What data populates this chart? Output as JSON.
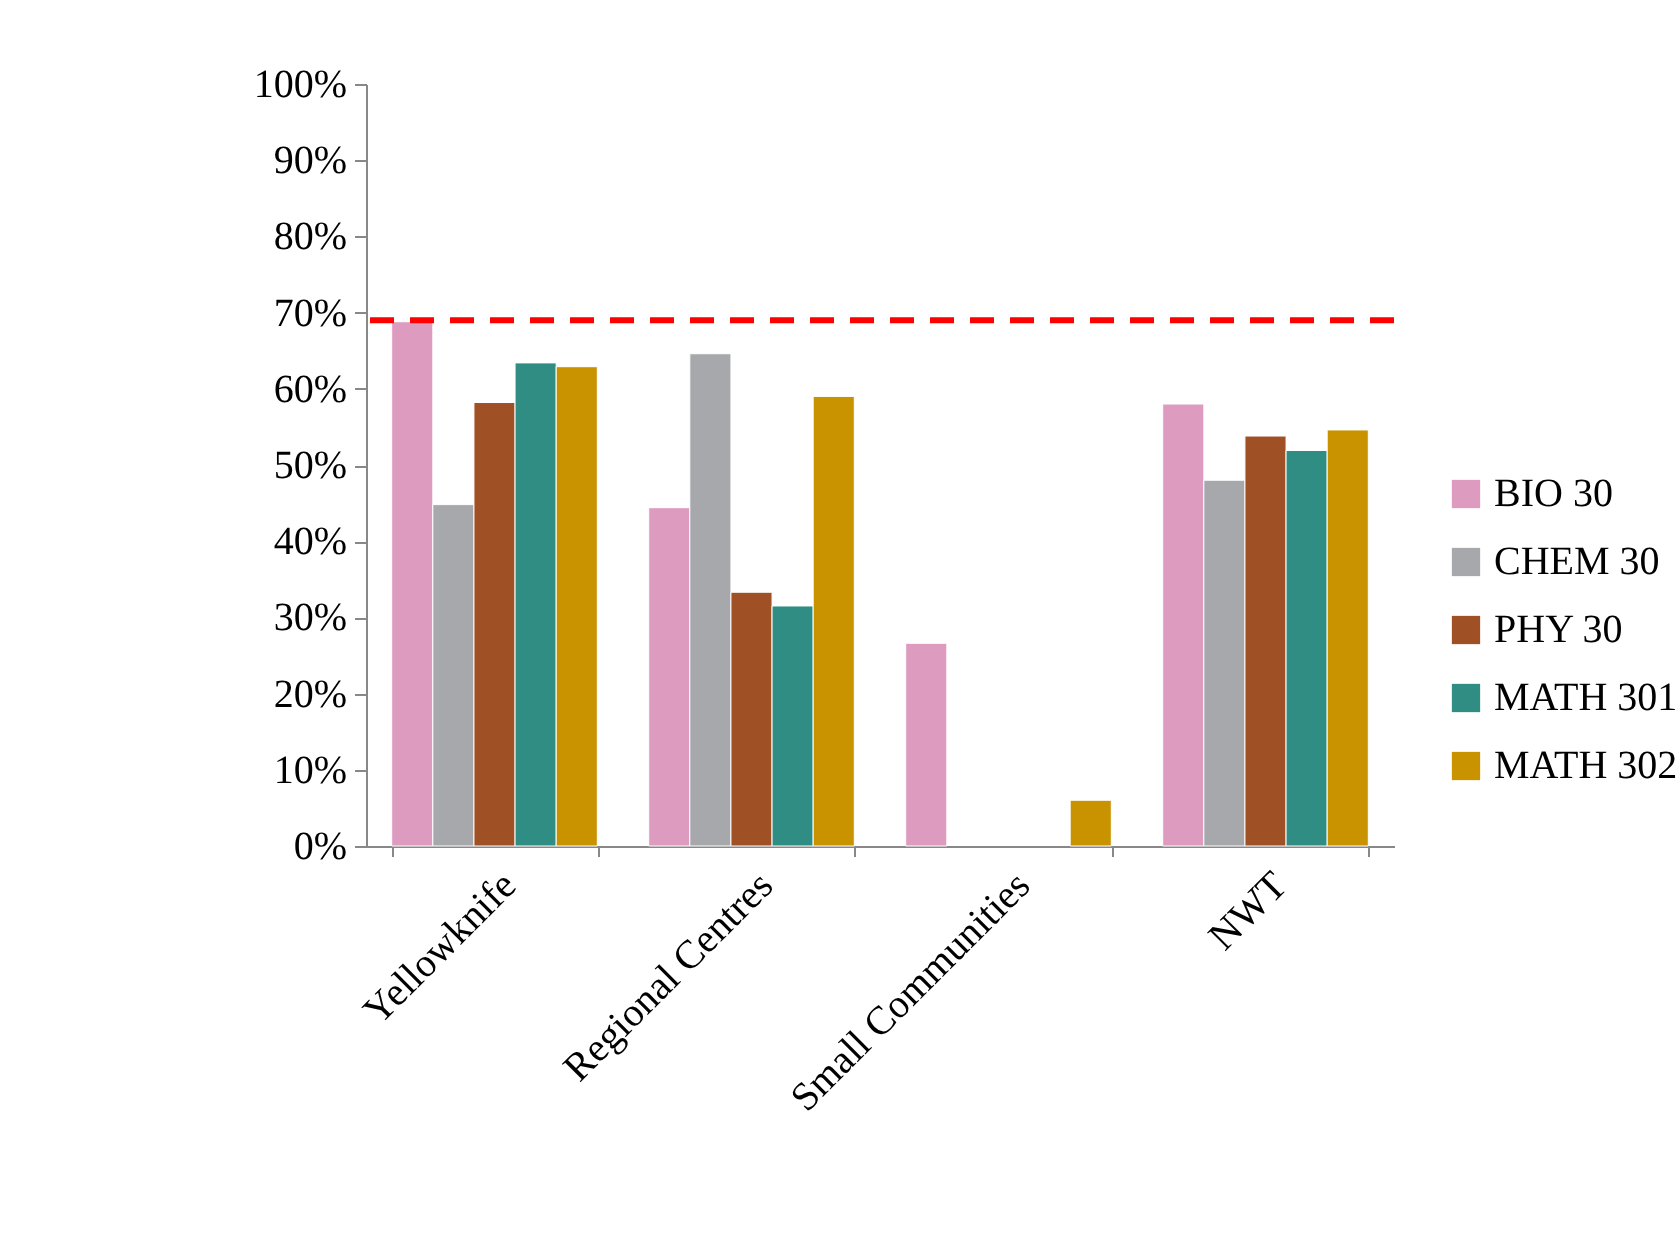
{
  "chart_data": {
    "type": "bar",
    "categories": [
      "Yellowknife",
      "Regional Centres",
      "Small Communities",
      "NWT"
    ],
    "series": [
      {
        "name": "BIO 30",
        "color": "#dd9bc0",
        "values": [
          68.8,
          44.4,
          26.6,
          58
        ]
      },
      {
        "name": "CHEM 30",
        "color": "#a7a8ab",
        "values": [
          44.8,
          64.6,
          null,
          48
        ]
      },
      {
        "name": "PHY 30",
        "color": "#a05025",
        "values": [
          58.2,
          33.3,
          null,
          53.8
        ]
      },
      {
        "name": "MATH 301",
        "color": "#2f8d84",
        "values": [
          63.4,
          31.5,
          null,
          51.9
        ]
      },
      {
        "name": "MATH 302",
        "color": "#c99300",
        "values": [
          62.9,
          59,
          6,
          54.6
        ]
      }
    ],
    "ylim": [
      0,
      100
    ],
    "yticks": [
      {
        "value": 0,
        "label": "0%"
      },
      {
        "value": 10,
        "label": "10%"
      },
      {
        "value": 20,
        "label": "20%"
      },
      {
        "value": 30,
        "label": "30%"
      },
      {
        "value": 40,
        "label": "40%"
      },
      {
        "value": 50,
        "label": "50%"
      },
      {
        "value": 60,
        "label": "60%"
      },
      {
        "value": 70,
        "label": "70%"
      },
      {
        "value": 80,
        "label": "80%"
      },
      {
        "value": 90,
        "label": "90%"
      },
      {
        "value": 100,
        "label": "100%"
      }
    ],
    "ref_lines": [
      {
        "axis": "y",
        "value": 69,
        "color": "#ff0000",
        "line_style": "dashed"
      }
    ],
    "legend": "right",
    "grid": false
  }
}
